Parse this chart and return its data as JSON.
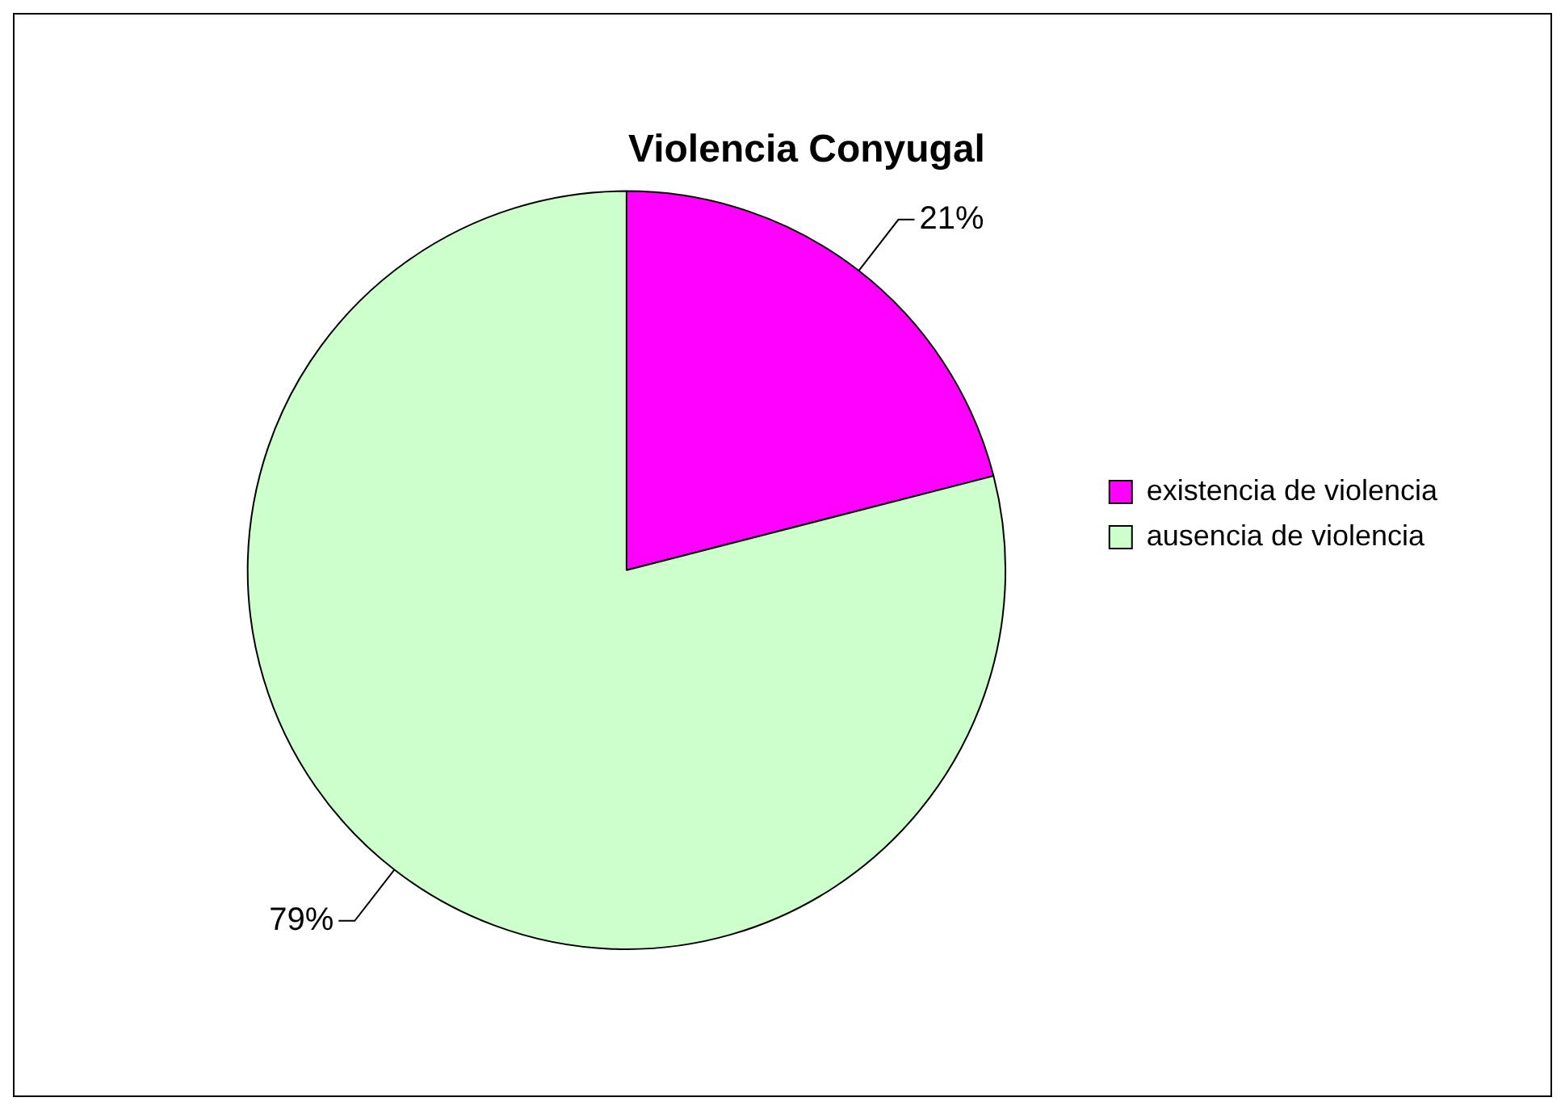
{
  "chart_data": {
    "type": "pie",
    "title": "Violencia Conyugal",
    "categories": [
      "existencia de violencia",
      "ausencia de violencia"
    ],
    "values": [
      21,
      79
    ],
    "colors": [
      "#ff00ff",
      "#ccffcc"
    ],
    "value_labels": [
      "21%",
      "79%"
    ],
    "legend": "right"
  }
}
